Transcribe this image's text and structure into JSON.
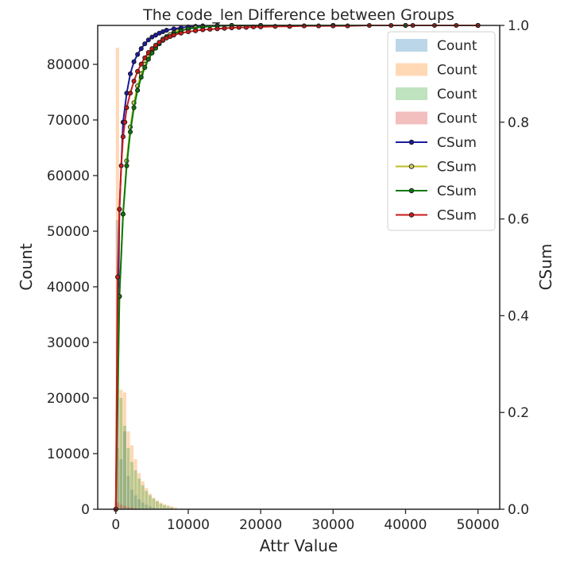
{
  "chart_data": {
    "type": "bar",
    "title": "The code_len Difference between Groups",
    "xlabel": "Attr Value",
    "ylabel": "Count",
    "y2label": "CSum",
    "xlim": [
      -2500,
      53000
    ],
    "ylim": [
      0,
      87000
    ],
    "y2lim": [
      0.0,
      1.0
    ],
    "xticks": [
      "0",
      "10000",
      "20000",
      "30000",
      "40000",
      "50000"
    ],
    "xtick_values": [
      0,
      10000,
      20000,
      30000,
      40000,
      50000
    ],
    "yticks": [
      "0",
      "10000",
      "20000",
      "30000",
      "40000",
      "50000",
      "60000",
      "70000",
      "80000"
    ],
    "ytick_values": [
      0,
      10000,
      20000,
      30000,
      40000,
      50000,
      60000,
      70000,
      80000
    ],
    "y2ticks": [
      "0.0",
      "0.2",
      "0.4",
      "0.6",
      "0.8",
      "1.0"
    ],
    "y2tick_values": [
      0.0,
      0.2,
      0.4,
      0.6,
      0.8,
      1.0
    ],
    "legend_position": "top-right",
    "grid": false,
    "bar_series": [
      {
        "name": "Count",
        "color": "#1f77b4",
        "opacity": 0.3,
        "x": [
          0,
          500,
          1000,
          1500,
          2000,
          2500,
          3000,
          3500,
          4000,
          4500,
          5000
        ],
        "values": [
          52000,
          9000,
          14000,
          6000,
          3500,
          2500,
          1800,
          1200,
          800,
          500,
          300
        ]
      },
      {
        "name": "Count",
        "color": "#ff7f0e",
        "opacity": 0.3,
        "x": [
          0,
          500,
          1000,
          1500,
          2000,
          2500,
          3000,
          3500,
          4000,
          4500,
          5000,
          5500,
          6000,
          6500,
          7000,
          7500,
          8000
        ],
        "values": [
          83000,
          21500,
          21000,
          14000,
          11500,
          9000,
          6500,
          5000,
          3800,
          2800,
          2100,
          1600,
          1200,
          900,
          700,
          500,
          350
        ]
      },
      {
        "name": "Count",
        "color": "#2ca02c",
        "opacity": 0.3,
        "x": [
          0,
          500,
          1000,
          1500,
          2000,
          2500,
          3000,
          3500,
          4000,
          4500,
          5000,
          5500,
          6000,
          6500,
          7000,
          7500
        ],
        "values": [
          11000,
          20000,
          15000,
          11000,
          8500,
          7000,
          5500,
          4300,
          3300,
          2500,
          1900,
          1400,
          1000,
          700,
          500,
          350
        ]
      },
      {
        "name": "Count",
        "color": "#d62728",
        "opacity": 0.3,
        "x": [
          0,
          500,
          1000,
          1500,
          2000,
          2500
        ],
        "values": [
          1200,
          800,
          600,
          400,
          300,
          200
        ]
      }
    ],
    "line_series": [
      {
        "name": "CSum",
        "color": "#1a1aa0",
        "marker_fill": "#1a1aa0",
        "x": [
          0,
          500,
          1000,
          1500,
          2000,
          2500,
          3000,
          3500,
          4000,
          4500,
          5000,
          5500,
          6000,
          6500,
          7000,
          8000,
          9000,
          10000,
          11000,
          12000,
          14000,
          16000,
          20000,
          30000,
          40000,
          50000
        ],
        "y": [
          0.0,
          0.62,
          0.8,
          0.86,
          0.9,
          0.925,
          0.94,
          0.952,
          0.962,
          0.97,
          0.976,
          0.98,
          0.984,
          0.987,
          0.99,
          0.993,
          0.995,
          0.997,
          0.998,
          0.999,
          0.9995,
          1.0,
          1.0,
          1.0,
          1.0,
          1.0
        ]
      },
      {
        "name": "CSum",
        "color": "#bdbd22",
        "marker_fill": "#cfd05a",
        "x": [
          0,
          500,
          1000,
          1500,
          2000,
          2500,
          3000,
          3500,
          4000,
          4500,
          5000,
          5500,
          6000,
          6500,
          7000,
          7500,
          8000,
          8500,
          9000,
          10000,
          11000,
          12000,
          14000,
          16000,
          20000,
          30000,
          40000,
          50000
        ],
        "y": [
          0.0,
          0.44,
          0.61,
          0.72,
          0.79,
          0.84,
          0.875,
          0.9,
          0.92,
          0.935,
          0.947,
          0.957,
          0.965,
          0.972,
          0.977,
          0.981,
          0.985,
          0.988,
          0.99,
          0.993,
          0.995,
          0.997,
          0.999,
          1.0,
          1.0,
          1.0,
          1.0,
          1.0
        ]
      },
      {
        "name": "CSum",
        "color": "#0a7a0a",
        "marker_fill": "#0a7a0a",
        "x": [
          0,
          500,
          1000,
          1500,
          2000,
          2500,
          3000,
          3500,
          4000,
          4500,
          5000,
          5500,
          6000,
          6500,
          7000,
          8000,
          9000,
          10000,
          12000,
          14000,
          16000,
          20000,
          30000,
          40000,
          50000
        ],
        "y": [
          0.0,
          0.44,
          0.61,
          0.71,
          0.78,
          0.83,
          0.866,
          0.893,
          0.913,
          0.93,
          0.943,
          0.953,
          0.962,
          0.969,
          0.975,
          0.983,
          0.989,
          0.993,
          0.997,
          0.999,
          1.0,
          1.0,
          1.0,
          1.0,
          1.0
        ]
      },
      {
        "name": "CSum",
        "color": "#cc1a1a",
        "marker_fill": "#cc1a1a",
        "x": [
          0,
          250,
          500,
          750,
          1000,
          1250,
          1500,
          2000,
          2500,
          3000,
          3500,
          4000,
          4500,
          5000,
          5500,
          6000,
          6500,
          7000,
          7500,
          8000,
          9000,
          10000,
          11000,
          12000,
          13000,
          14000,
          15000,
          16000,
          17000,
          18000,
          19000,
          20000,
          22000,
          24000,
          26000,
          28000,
          30000,
          32000,
          35000,
          38000,
          41000,
          44000,
          47000,
          50000
        ],
        "y": [
          0.0,
          0.48,
          0.62,
          0.71,
          0.77,
          0.8,
          0.83,
          0.86,
          0.885,
          0.905,
          0.92,
          0.933,
          0.944,
          0.952,
          0.959,
          0.965,
          0.97,
          0.974,
          0.977,
          0.98,
          0.984,
          0.987,
          0.989,
          0.991,
          0.992,
          0.993,
          0.994,
          0.995,
          0.996,
          0.996,
          0.997,
          0.997,
          0.998,
          0.998,
          0.999,
          0.999,
          0.999,
          0.999,
          1.0,
          1.0,
          1.0,
          1.0,
          1.0,
          1.0
        ]
      }
    ]
  }
}
